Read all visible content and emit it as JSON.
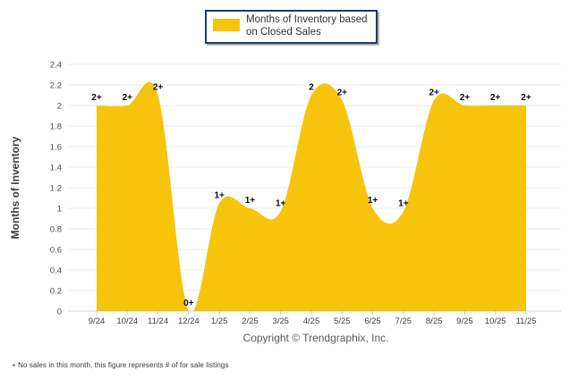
{
  "legend": {
    "line1": "Months of Inventory based",
    "line2": "on Closed Sales"
  },
  "footer": {
    "copyright": "Copyright © Trendgraphix, Inc.",
    "footnote": "+ No sales in this month, this figure represents # of for sale listings"
  },
  "chart_data": {
    "type": "area",
    "title": "Months of Inventory based on Closed Sales",
    "categories": [
      "9/24",
      "10/24",
      "11/24",
      "12/24",
      "1/25",
      "2/25",
      "3/25",
      "4/25",
      "5/25",
      "6/25",
      "7/25",
      "8/25",
      "9/25",
      "10/25",
      "11/25"
    ],
    "values": [
      2,
      2,
      2.1,
      0,
      1.05,
      1,
      0.97,
      2.1,
      2.05,
      1,
      0.97,
      2.05,
      2,
      2,
      2
    ],
    "point_labels": [
      "2+",
      "2+",
      "2+",
      "0+",
      "1+",
      "1+",
      "1+",
      "2",
      "2+",
      "1+",
      "1+",
      "2+",
      "2+",
      "2+",
      "2+"
    ],
    "xlabel": "",
    "ylabel": "Months of Inventory",
    "ylim": [
      0,
      2.4
    ],
    "ytick_interval": 0.2,
    "grid": true,
    "smooth": true,
    "legend_position": "top-center",
    "area_color": "#F6C40A",
    "label_color": "#0a0a0a",
    "axis_text_color": "#4b4e55"
  }
}
